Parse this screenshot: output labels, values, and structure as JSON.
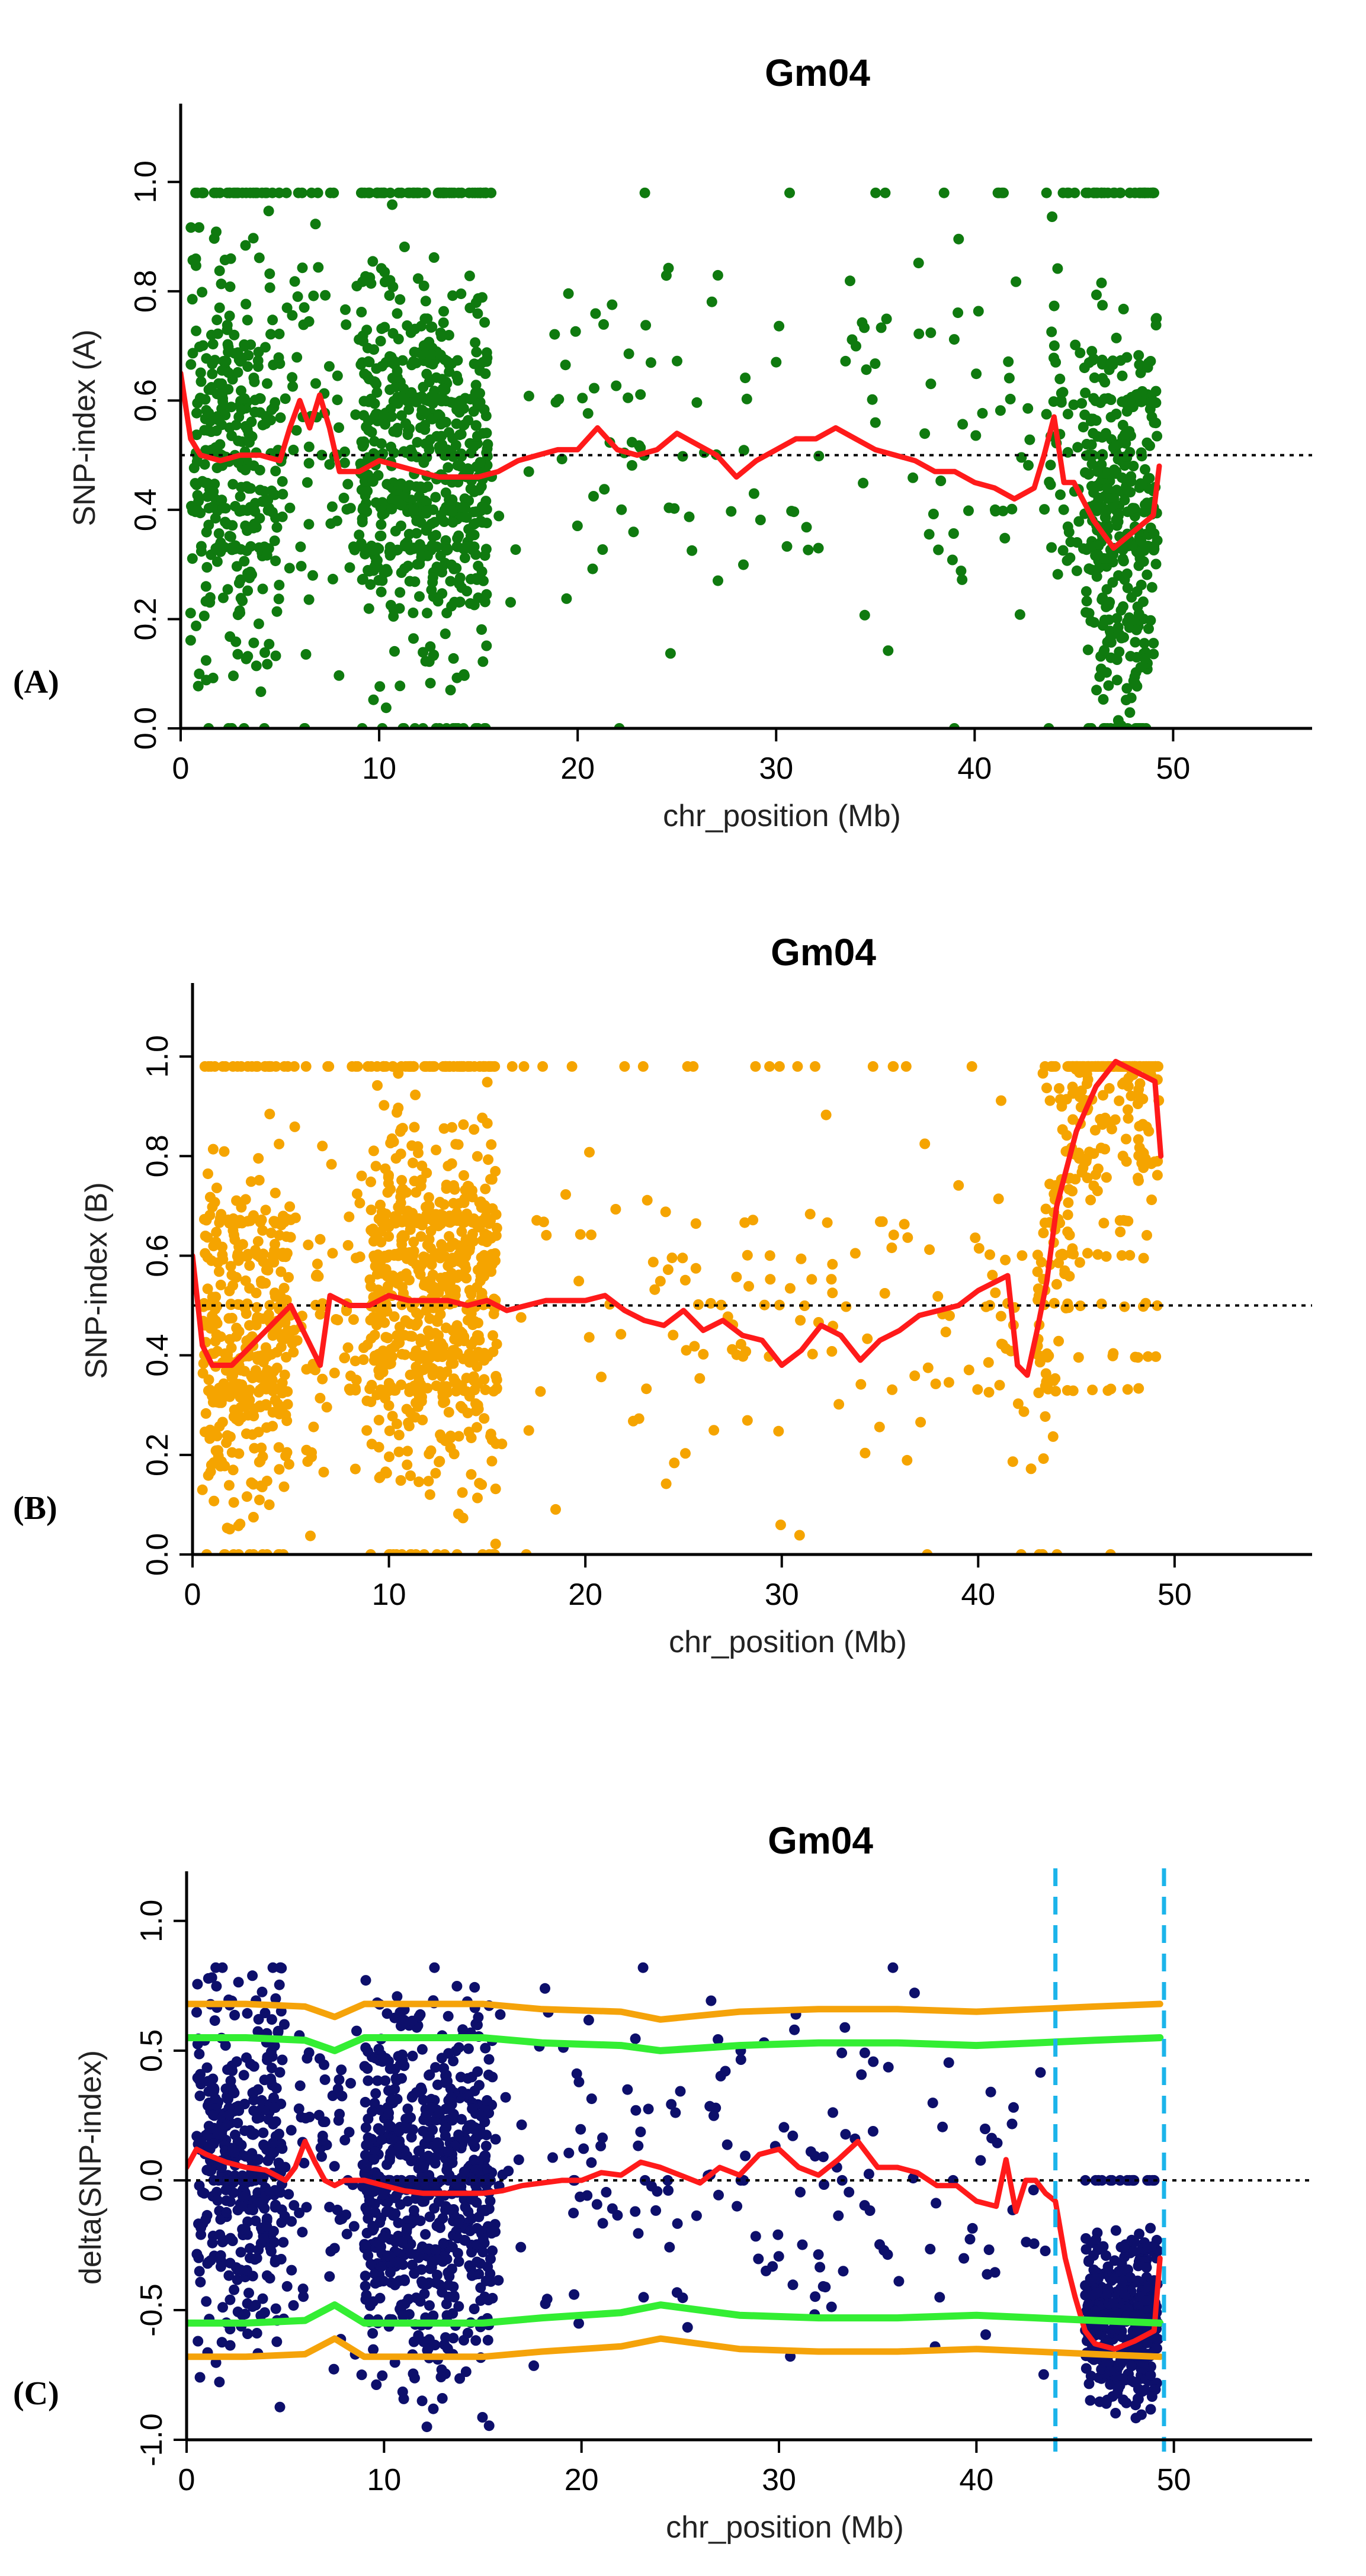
{
  "colors": {
    "scatter_A": "#0f7a0f",
    "scatter_B": "#f5a400",
    "scatter_C": "#0d0f6b",
    "mean_line": "#ff1a1a",
    "threshold_95": "#33ee33",
    "threshold_99": "#f5a30a",
    "region_marker": "#1cb4ea",
    "axis": "#000000"
  },
  "chart_data": [
    {
      "panel": "(A)",
      "type": "scatter",
      "title": "Gm04",
      "xlabel": "chr_position (Mb)",
      "ylabel": "SNP-index (A)",
      "xlim": [
        0,
        57
      ],
      "ylim": [
        0,
        1.1
      ],
      "xticks": [
        "0",
        "10",
        "20",
        "30",
        "40",
        "50"
      ],
      "yticks": [
        "0.0",
        "0.2",
        "0.4",
        "0.6",
        "0.8",
        "1.0"
      ],
      "reference_line": 0.5,
      "point_density": [
        {
          "range": [
            0.5,
            5.0
          ],
          "weight": 8
        },
        {
          "range": [
            5.0,
            9.0
          ],
          "weight": 1.5
        },
        {
          "range": [
            9.0,
            15.5
          ],
          "weight": 14
        },
        {
          "range": [
            15.5,
            43.5
          ],
          "weight": 3
        },
        {
          "range": [
            43.5,
            45.5
          ],
          "weight": 1
        },
        {
          "range": [
            45.5,
            49.2
          ],
          "weight": 9
        }
      ],
      "series": [
        {
          "name": "SNP-index (A) sliding-window mean",
          "x": [
            0,
            0.5,
            1,
            2,
            3,
            4,
            5,
            5.5,
            6,
            6.5,
            7,
            7.5,
            8,
            9,
            10,
            11,
            12,
            13,
            14,
            15,
            16,
            17,
            18,
            19,
            20,
            21,
            22,
            23,
            24,
            25,
            26,
            27,
            28,
            29,
            30,
            31,
            32,
            33,
            34,
            35,
            36,
            37,
            38,
            39,
            40,
            41,
            42,
            43,
            43.5,
            44,
            44.5,
            45,
            46,
            47,
            48,
            49,
            49.3
          ],
          "y": [
            0.65,
            0.53,
            0.5,
            0.49,
            0.5,
            0.5,
            0.49,
            0.55,
            0.6,
            0.55,
            0.61,
            0.55,
            0.47,
            0.47,
            0.49,
            0.48,
            0.47,
            0.46,
            0.46,
            0.46,
            0.47,
            0.49,
            0.5,
            0.51,
            0.51,
            0.55,
            0.51,
            0.5,
            0.51,
            0.54,
            0.52,
            0.5,
            0.46,
            0.49,
            0.51,
            0.53,
            0.53,
            0.55,
            0.53,
            0.51,
            0.5,
            0.49,
            0.47,
            0.47,
            0.45,
            0.44,
            0.42,
            0.44,
            0.5,
            0.57,
            0.45,
            0.45,
            0.38,
            0.33,
            0.36,
            0.39,
            0.48
          ]
        }
      ]
    },
    {
      "panel": "(B)",
      "type": "scatter",
      "title": "Gm04",
      "xlabel": "chr_position (Mb)",
      "ylabel": "SNP-index (B)",
      "xlim": [
        0,
        57
      ],
      "ylim": [
        0,
        1.1
      ],
      "xticks": [
        "0",
        "10",
        "20",
        "30",
        "40",
        "50"
      ],
      "yticks": [
        "0.0",
        "0.2",
        "0.4",
        "0.6",
        "0.8",
        "1.0"
      ],
      "reference_line": 0.5,
      "point_density": [
        {
          "range": [
            0.5,
            5.0
          ],
          "weight": 8
        },
        {
          "range": [
            5.0,
            9.0
          ],
          "weight": 1.5
        },
        {
          "range": [
            9.0,
            15.5
          ],
          "weight": 14
        },
        {
          "range": [
            15.5,
            43.0
          ],
          "weight": 3
        },
        {
          "range": [
            43.0,
            49.2
          ],
          "weight": 6
        }
      ],
      "series": [
        {
          "name": "SNP-index (B) sliding-window mean",
          "x": [
            0,
            0.5,
            1,
            2,
            3,
            4,
            5,
            5.5,
            6,
            6.5,
            7,
            8,
            9,
            10,
            11,
            12,
            13,
            14,
            15,
            16,
            17,
            18,
            19,
            20,
            21,
            22,
            23,
            24,
            25,
            26,
            27,
            28,
            29,
            30,
            31,
            32,
            33,
            34,
            35,
            36,
            37,
            38,
            39,
            40,
            41,
            41.5,
            42,
            42.5,
            43,
            43.5,
            44,
            45,
            46,
            47,
            48,
            49,
            49.3
          ],
          "y": [
            0.6,
            0.42,
            0.38,
            0.38,
            0.42,
            0.46,
            0.5,
            0.46,
            0.42,
            0.38,
            0.52,
            0.5,
            0.5,
            0.52,
            0.51,
            0.51,
            0.51,
            0.5,
            0.51,
            0.49,
            0.5,
            0.51,
            0.51,
            0.51,
            0.52,
            0.49,
            0.47,
            0.46,
            0.49,
            0.45,
            0.47,
            0.44,
            0.43,
            0.38,
            0.41,
            0.46,
            0.44,
            0.39,
            0.43,
            0.45,
            0.48,
            0.49,
            0.5,
            0.53,
            0.55,
            0.56,
            0.38,
            0.36,
            0.45,
            0.55,
            0.7,
            0.85,
            0.94,
            0.99,
            0.97,
            0.95,
            0.8
          ]
        }
      ]
    },
    {
      "panel": "(C)",
      "type": "scatter",
      "title": "Gm04",
      "xlabel": "chr_position (Mb)",
      "ylabel": "delta(SNP-index)",
      "xlim": [
        0,
        57
      ],
      "ylim": [
        -1.0,
        1.1
      ],
      "xticks": [
        "0",
        "10",
        "20",
        "30",
        "40",
        "50"
      ],
      "yticks": [
        "-1.0",
        "-0.5",
        "0.0",
        "0.5",
        "1.0"
      ],
      "reference_line": 0.0,
      "region_markers": [
        44.0,
        49.5
      ],
      "point_density": [
        {
          "range": [
            0.5,
            5.0
          ],
          "weight": 8
        },
        {
          "range": [
            5.0,
            9.0
          ],
          "weight": 1.5
        },
        {
          "range": [
            9.0,
            15.5
          ],
          "weight": 14
        },
        {
          "range": [
            15.5,
            43.5
          ],
          "weight": 3
        },
        {
          "range": [
            45.5,
            49.2
          ],
          "weight": 9
        }
      ],
      "series": [
        {
          "name": "delta(SNP-index) sliding-window mean",
          "x": [
            0,
            0.5,
            1,
            2,
            3,
            4,
            5,
            5.5,
            6,
            6.5,
            7,
            7.5,
            8,
            9,
            10,
            11,
            12,
            13,
            14,
            15,
            16,
            17,
            18,
            19,
            20,
            21,
            22,
            23,
            24,
            25,
            26,
            27,
            28,
            29,
            30,
            31,
            32,
            33,
            34,
            35,
            36,
            37,
            38,
            39,
            40,
            41,
            41.5,
            42,
            42.5,
            43,
            43.5,
            44,
            44.5,
            45,
            45.5,
            46,
            47,
            48,
            49,
            49.3
          ],
          "y": [
            0.05,
            0.12,
            0.1,
            0.07,
            0.05,
            0.04,
            0.0,
            0.05,
            0.15,
            0.07,
            0.0,
            -0.02,
            0.0,
            0.0,
            -0.02,
            -0.04,
            -0.05,
            -0.05,
            -0.05,
            -0.05,
            -0.04,
            -0.02,
            -0.01,
            0.0,
            0.0,
            0.03,
            0.02,
            0.07,
            0.05,
            0.02,
            -0.01,
            0.05,
            0.02,
            0.1,
            0.12,
            0.05,
            0.02,
            0.08,
            0.15,
            0.05,
            0.05,
            0.03,
            -0.02,
            -0.02,
            -0.08,
            -0.1,
            0.08,
            -0.12,
            0.0,
            0.0,
            -0.05,
            -0.08,
            -0.3,
            -0.45,
            -0.58,
            -0.63,
            -0.65,
            -0.62,
            -0.58,
            -0.3
          ]
        },
        {
          "name": "95% threshold upper",
          "x": [
            0,
            3,
            6,
            7.5,
            9,
            15,
            18,
            22,
            24,
            28,
            32,
            36,
            40,
            43,
            46,
            49.3
          ],
          "y": [
            0.55,
            0.55,
            0.54,
            0.5,
            0.55,
            0.55,
            0.53,
            0.52,
            0.5,
            0.52,
            0.53,
            0.53,
            0.52,
            0.53,
            0.54,
            0.55
          ]
        },
        {
          "name": "95% threshold lower",
          "x": [
            0,
            3,
            6,
            7.5,
            9,
            15,
            18,
            22,
            24,
            28,
            32,
            36,
            40,
            43,
            46,
            49.3
          ],
          "y": [
            -0.55,
            -0.55,
            -0.54,
            -0.48,
            -0.55,
            -0.55,
            -0.53,
            -0.51,
            -0.48,
            -0.52,
            -0.53,
            -0.53,
            -0.52,
            -0.53,
            -0.54,
            -0.55
          ]
        },
        {
          "name": "99% threshold upper",
          "x": [
            0,
            3,
            6,
            7.5,
            9,
            15,
            18,
            22,
            24,
            28,
            32,
            36,
            40,
            43,
            46,
            49.3
          ],
          "y": [
            0.68,
            0.68,
            0.67,
            0.63,
            0.68,
            0.68,
            0.66,
            0.65,
            0.62,
            0.65,
            0.66,
            0.66,
            0.65,
            0.66,
            0.67,
            0.68
          ]
        },
        {
          "name": "99% threshold lower",
          "x": [
            0,
            3,
            6,
            7.5,
            9,
            15,
            18,
            22,
            24,
            28,
            32,
            36,
            40,
            43,
            46,
            49.3
          ],
          "y": [
            -0.68,
            -0.68,
            -0.67,
            -0.61,
            -0.68,
            -0.68,
            -0.66,
            -0.64,
            -0.61,
            -0.65,
            -0.66,
            -0.66,
            -0.65,
            -0.66,
            -0.67,
            -0.68
          ]
        }
      ]
    }
  ]
}
